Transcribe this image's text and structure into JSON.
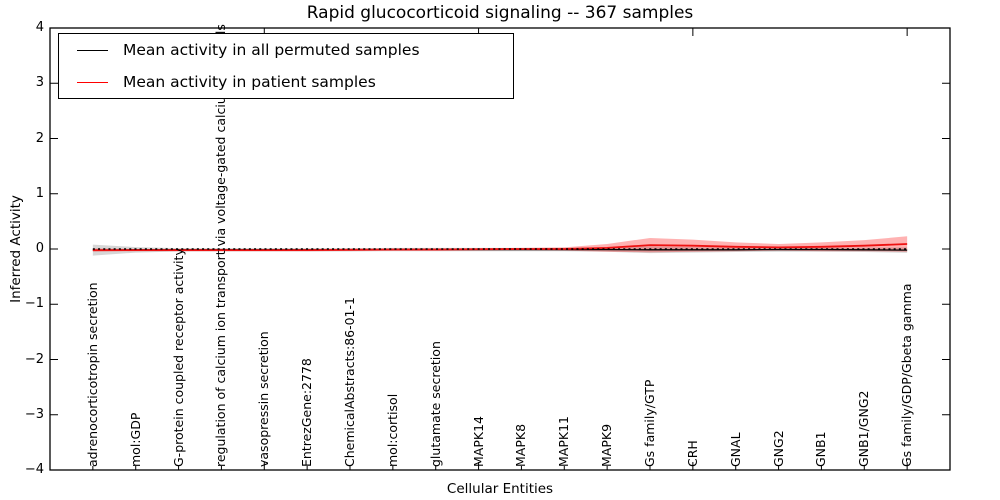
{
  "title": "Rapid glucocorticoid signaling -- 367 samples",
  "legend": {
    "position": "upper left",
    "items": [
      {
        "label": "Mean activity in all permuted samples",
        "color": "#000000"
      },
      {
        "label": "Mean activity in patient samples",
        "color": "#ff0000"
      }
    ]
  },
  "chart_data": {
    "type": "line",
    "title": "Rapid glucocorticoid signaling -- 367 samples",
    "xlabel": "Cellular Entities",
    "ylabel": "Inferred Activity",
    "xlim": [
      0,
      21
    ],
    "ylim": [
      -4,
      4
    ],
    "grid": false,
    "legend_position": "upper left",
    "yticks": [
      -4,
      -3,
      -2,
      -1,
      0,
      1,
      2,
      3,
      4
    ],
    "ytick_labels": [
      "−4",
      "−3",
      "−2",
      "−1",
      "0",
      "1",
      "2",
      "3",
      "4"
    ],
    "x": [
      1,
      2,
      3,
      4,
      5,
      6,
      7,
      8,
      9,
      10,
      11,
      12,
      13,
      14,
      15,
      16,
      17,
      18,
      19,
      20
    ],
    "x_major_ticks": [
      5,
      10,
      15,
      20
    ],
    "categories": [
      "adrenocorticotropin secretion",
      "mol:GDP",
      "G-protein coupled receptor activity",
      "regulation of calcium ion transport via voltage-gated calcium channels",
      "vasopressin secretion",
      "EntrezGene:2778",
      "ChemicalAbstracts:86-01-1",
      "mol:cortisol",
      "glutamate secretion",
      "MAPK14",
      "MAPK8",
      "MAPK11",
      "MAPK9",
      "Gs family/GTP",
      "CRH",
      "GNAL",
      "GNG2",
      "GNB1",
      "GNB1/GNG2",
      "Gs family/GDP/Gbeta gamma"
    ],
    "series": [
      {
        "name": "Mean activity in all permuted samples",
        "color": "#000000",
        "style": "solid",
        "values": [
          -0.02,
          -0.015,
          -0.015,
          -0.015,
          -0.015,
          -0.015,
          -0.015,
          -0.01,
          -0.01,
          -0.01,
          -0.01,
          -0.01,
          -0.01,
          -0.015,
          -0.015,
          -0.015,
          -0.01,
          -0.01,
          -0.015,
          -0.02
        ],
        "band_std": [
          0.1,
          0.05,
          0.03,
          0.03,
          0.03,
          0.03,
          0.03,
          0.03,
          0.03,
          0.03,
          0.03,
          0.03,
          0.04,
          0.06,
          0.05,
          0.04,
          0.04,
          0.04,
          0.04,
          0.05
        ],
        "band_color": "rgba(120,120,120,0.30)"
      },
      {
        "name": "Mean activity in patient samples",
        "color": "#ee1111",
        "style": "solid",
        "values": [
          -0.02,
          -0.02,
          -0.02,
          -0.02,
          -0.02,
          -0.02,
          -0.015,
          -0.01,
          -0.01,
          -0.005,
          0.0,
          0.0,
          0.02,
          0.07,
          0.06,
          0.04,
          0.03,
          0.04,
          0.06,
          0.09
        ],
        "band_std": [
          0.03,
          0.02,
          0.02,
          0.02,
          0.02,
          0.02,
          0.02,
          0.02,
          0.02,
          0.02,
          0.02,
          0.03,
          0.07,
          0.13,
          0.11,
          0.08,
          0.06,
          0.08,
          0.1,
          0.14
        ],
        "band_color": "rgba(255,0,0,0.30)"
      },
      {
        "name": "zero reference",
        "color": "#000000",
        "style": "dotted",
        "values": [
          0,
          0,
          0,
          0,
          0,
          0,
          0,
          0,
          0,
          0,
          0,
          0,
          0,
          0,
          0,
          0,
          0,
          0,
          0,
          0
        ]
      }
    ]
  }
}
